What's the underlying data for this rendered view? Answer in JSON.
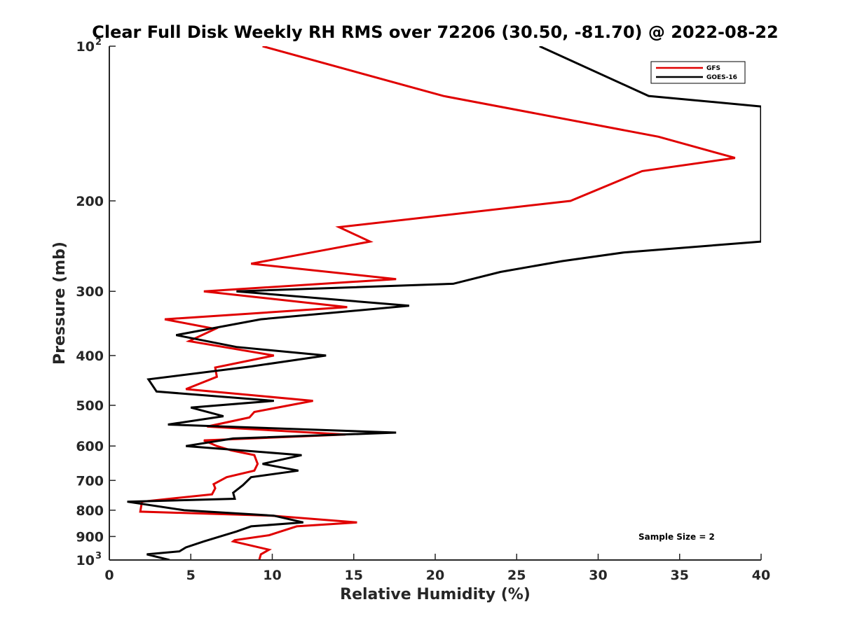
{
  "chart_data": {
    "type": "line",
    "title": "Clear Full Disk Weekly RH RMS over 72206 (30.50, -81.70) @ 2022-08-22",
    "xlabel": "Relative Humidity (%)",
    "ylabel": "Pressure (mb)",
    "xlim": [
      0,
      40
    ],
    "ylim": [
      100,
      1000
    ],
    "y_scale": "log",
    "y_reversed": true,
    "x_ticks": [
      "0",
      "5",
      "10",
      "15",
      "20",
      "25",
      "30",
      "35",
      "40"
    ],
    "y_ticks": [
      {
        "value": 100,
        "base": "10",
        "exp": "2"
      },
      {
        "value": 200,
        "label": "200"
      },
      {
        "value": 300,
        "label": "300"
      },
      {
        "value": 400,
        "label": "400"
      },
      {
        "value": 500,
        "label": "500"
      },
      {
        "value": 600,
        "label": "600"
      },
      {
        "value": 700,
        "label": "700"
      },
      {
        "value": 800,
        "label": "800"
      },
      {
        "value": 900,
        "label": "900"
      },
      {
        "value": 1000,
        "base": "10",
        "exp": "3"
      }
    ],
    "legend_position": "top-right",
    "grid": false,
    "annotation": "Sample Size = 2",
    "series": [
      {
        "name": "GFS",
        "color": "#e00000",
        "points": [
          [
            9.4,
            100
          ],
          [
            20.5,
            125
          ],
          [
            33.7,
            150
          ],
          [
            38.4,
            165
          ],
          [
            32.7,
            175
          ],
          [
            28.3,
            200
          ],
          [
            14.1,
            225
          ],
          [
            16.0,
            240
          ],
          [
            8.7,
            265
          ],
          [
            17.6,
            284
          ],
          [
            5.8,
            300
          ],
          [
            14.6,
            322
          ],
          [
            3.4,
            340
          ],
          [
            6.5,
            355
          ],
          [
            4.9,
            375
          ],
          [
            10.1,
            400
          ],
          [
            6.5,
            422
          ],
          [
            6.6,
            440
          ],
          [
            4.7,
            465
          ],
          [
            12.5,
            490
          ],
          [
            8.9,
            515
          ],
          [
            8.6,
            528
          ],
          [
            6.0,
            550
          ],
          [
            14.5,
            570
          ],
          [
            5.8,
            585
          ],
          [
            6.6,
            600
          ],
          [
            7.5,
            612
          ],
          [
            8.9,
            625
          ],
          [
            9.1,
            650
          ],
          [
            8.9,
            670
          ],
          [
            7.2,
            690
          ],
          [
            6.4,
            712
          ],
          [
            6.5,
            725
          ],
          [
            6.3,
            745
          ],
          [
            2.0,
            770
          ],
          [
            1.9,
            805
          ],
          [
            10.0,
            820
          ],
          [
            15.2,
            845
          ],
          [
            11.5,
            860
          ],
          [
            9.8,
            895
          ],
          [
            7.7,
            915
          ],
          [
            7.6,
            920
          ],
          [
            9.8,
            955
          ],
          [
            9.3,
            975
          ],
          [
            9.2,
            1000
          ]
        ]
      },
      {
        "name": "GOES-16",
        "color": "#000000",
        "points": [
          [
            26.4,
            100
          ],
          [
            33.1,
            125
          ],
          [
            40.0,
            131
          ],
          [
            40.0,
            240
          ],
          [
            31.6,
            252
          ],
          [
            27.8,
            262
          ],
          [
            24.0,
            275
          ],
          [
            21.1,
            290
          ],
          [
            7.8,
            300
          ],
          [
            18.4,
            320
          ],
          [
            9.3,
            340
          ],
          [
            4.1,
            365
          ],
          [
            7.8,
            385
          ],
          [
            13.3,
            400
          ],
          [
            8.7,
            420
          ],
          [
            2.4,
            445
          ],
          [
            2.9,
            470
          ],
          [
            10.1,
            490
          ],
          [
            5.0,
            505
          ],
          [
            7.0,
            525
          ],
          [
            3.6,
            545
          ],
          [
            17.6,
            565
          ],
          [
            7.6,
            580
          ],
          [
            4.7,
            600
          ],
          [
            11.8,
            625
          ],
          [
            9.4,
            650
          ],
          [
            11.6,
            670
          ],
          [
            8.7,
            690
          ],
          [
            8.2,
            715
          ],
          [
            7.6,
            740
          ],
          [
            7.7,
            760
          ],
          [
            1.1,
            770
          ],
          [
            4.6,
            800
          ],
          [
            10.1,
            820
          ],
          [
            11.9,
            845
          ],
          [
            8.7,
            860
          ],
          [
            7.8,
            880
          ],
          [
            5.8,
            920
          ],
          [
            4.7,
            945
          ],
          [
            4.3,
            962
          ],
          [
            2.3,
            975
          ],
          [
            3.7,
            1000
          ]
        ]
      }
    ]
  }
}
